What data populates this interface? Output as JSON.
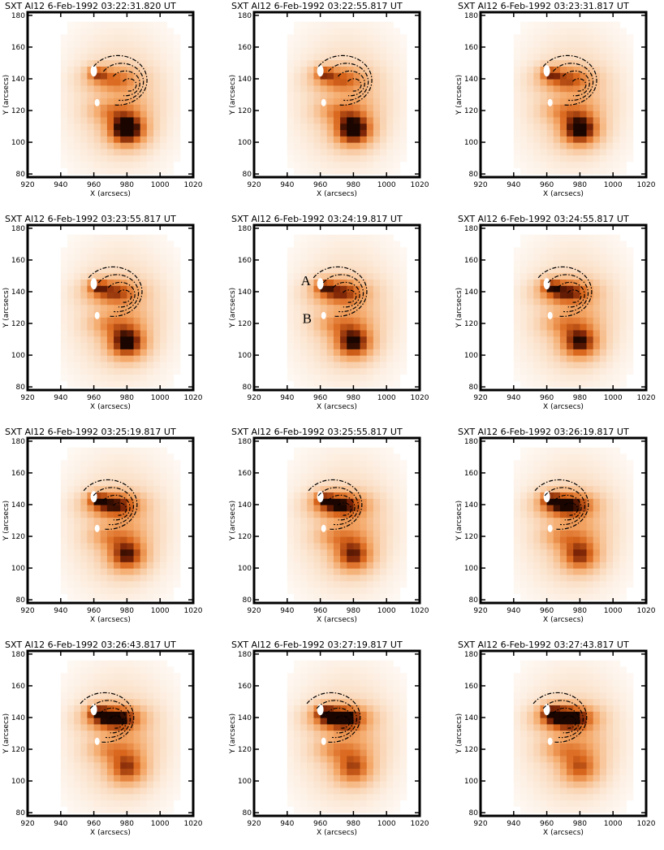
{
  "chart_data": {
    "type": "heatmap",
    "xlabel": "X (arcsecs)",
    "ylabel": "Y (arcsecs)",
    "xlim": [
      920,
      1020
    ],
    "ylim": [
      78,
      182
    ],
    "xticks": [
      920,
      940,
      960,
      980,
      1000,
      1020
    ],
    "yticks": [
      80,
      100,
      120,
      140,
      160,
      180
    ],
    "colormap": [
      "#ffffff",
      "#fbe3cd",
      "#f4a868",
      "#d9661c",
      "#7a2306",
      "#1a0500"
    ],
    "sources": [
      {
        "label": "A",
        "x": 960,
        "y": 145
      },
      {
        "label": "B",
        "x": 962,
        "y": 125
      }
    ],
    "panels": [
      {
        "title": "SXT Al12    6-Feb-1992  03:22:31.820  UT",
        "label_A": "",
        "label_B": "",
        "contour_center": [
          982,
          136
        ]
      },
      {
        "title": "SXT Al12    6-Feb-1992  03:22:55.817  UT",
        "label_A": "",
        "label_B": "",
        "contour_center": [
          981,
          136
        ]
      },
      {
        "title": "SXT Al12    6-Feb-1992  03:23:31.817  UT",
        "label_A": "",
        "label_B": "",
        "contour_center": [
          980,
          136
        ]
      },
      {
        "title": "SXT Al12    6-Feb-1992  03:23:55.817  UT",
        "label_A": "",
        "label_B": "",
        "contour_center": [
          979,
          137
        ]
      },
      {
        "title": "SXT Al12    6-Feb-1992  03:24:19.817  UT",
        "label_A": "A",
        "label_B": "B",
        "contour_center": [
          978,
          137
        ]
      },
      {
        "title": "SXT Al12    6-Feb-1992  03:24:55.817  UT",
        "label_A": "",
        "label_B": "",
        "contour_center": [
          977,
          137
        ]
      },
      {
        "title": "SXT Al12    6-Feb-1992  03:25:19.817  UT",
        "label_A": "",
        "label_B": "",
        "contour_center": [
          976,
          137
        ]
      },
      {
        "title": "SXT Al12    6-Feb-1992  03:25:55.817  UT",
        "label_A": "",
        "label_B": "",
        "contour_center": [
          975,
          137
        ]
      },
      {
        "title": "SXT Al12    6-Feb-1992  03:26:19.817  UT",
        "label_A": "",
        "label_B": "",
        "contour_center": [
          975,
          137
        ]
      },
      {
        "title": "SXT Al12    6-Feb-1992  03:26:43.817  UT",
        "label_A": "",
        "label_B": "",
        "contour_center": [
          974,
          137
        ]
      },
      {
        "title": "SXT Al12    6-Feb-1992  03:27:19.817  UT",
        "label_A": "",
        "label_B": "",
        "contour_center": [
          974,
          137
        ]
      },
      {
        "title": "SXT Al12    6-Feb-1992  03:27:43.817  UT",
        "label_A": "",
        "label_B": "",
        "contour_center": [
          974,
          137
        ]
      }
    ]
  }
}
